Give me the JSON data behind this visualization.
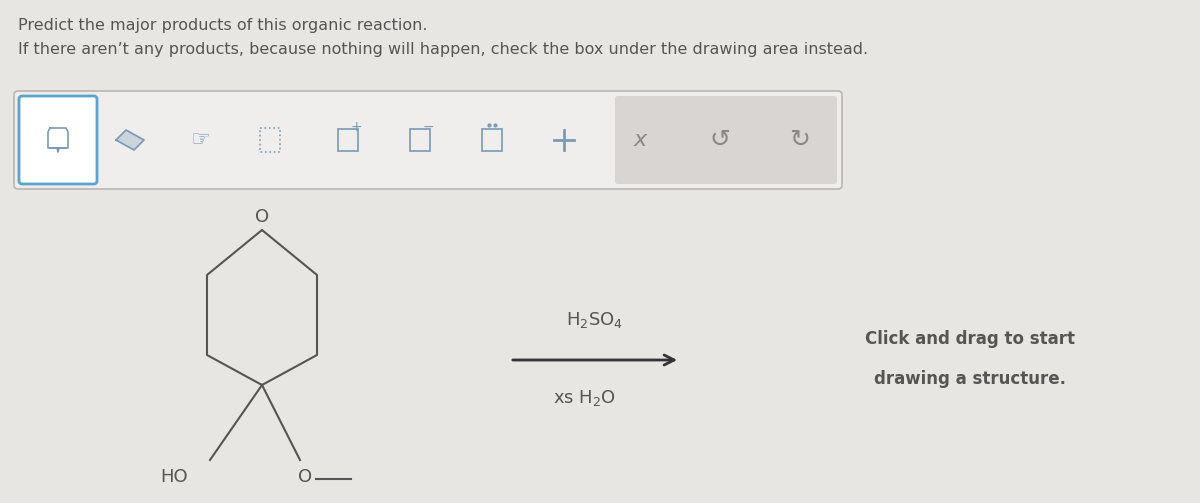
{
  "bg_color": "#e8e6e3",
  "title1": "Predict the major products of this organic reaction.",
  "title2": "If there aren’t any products, because nothing will happen, check the box under the drawing area instead.",
  "toolbar_bg": "#f0eeec",
  "toolbar_border": "#b8b5b2",
  "toolbar_selected_bg": "#ffffff",
  "toolbar_selected_border": "#5ba4cf",
  "toolbar_right_bg": "#d8d5d2",
  "reaction_arrow_color": "#333333",
  "reagent_above": "H$_2$SO$_4$",
  "reagent_below": "xs H$_2$O",
  "click_drag_text1": "Click and drag to start",
  "click_drag_text2": "drawing a structure.",
  "text_color": "#555555",
  "structure_color": "#555555",
  "font_size_title": 11.5,
  "font_size_reagent": 13,
  "font_size_click": 12
}
